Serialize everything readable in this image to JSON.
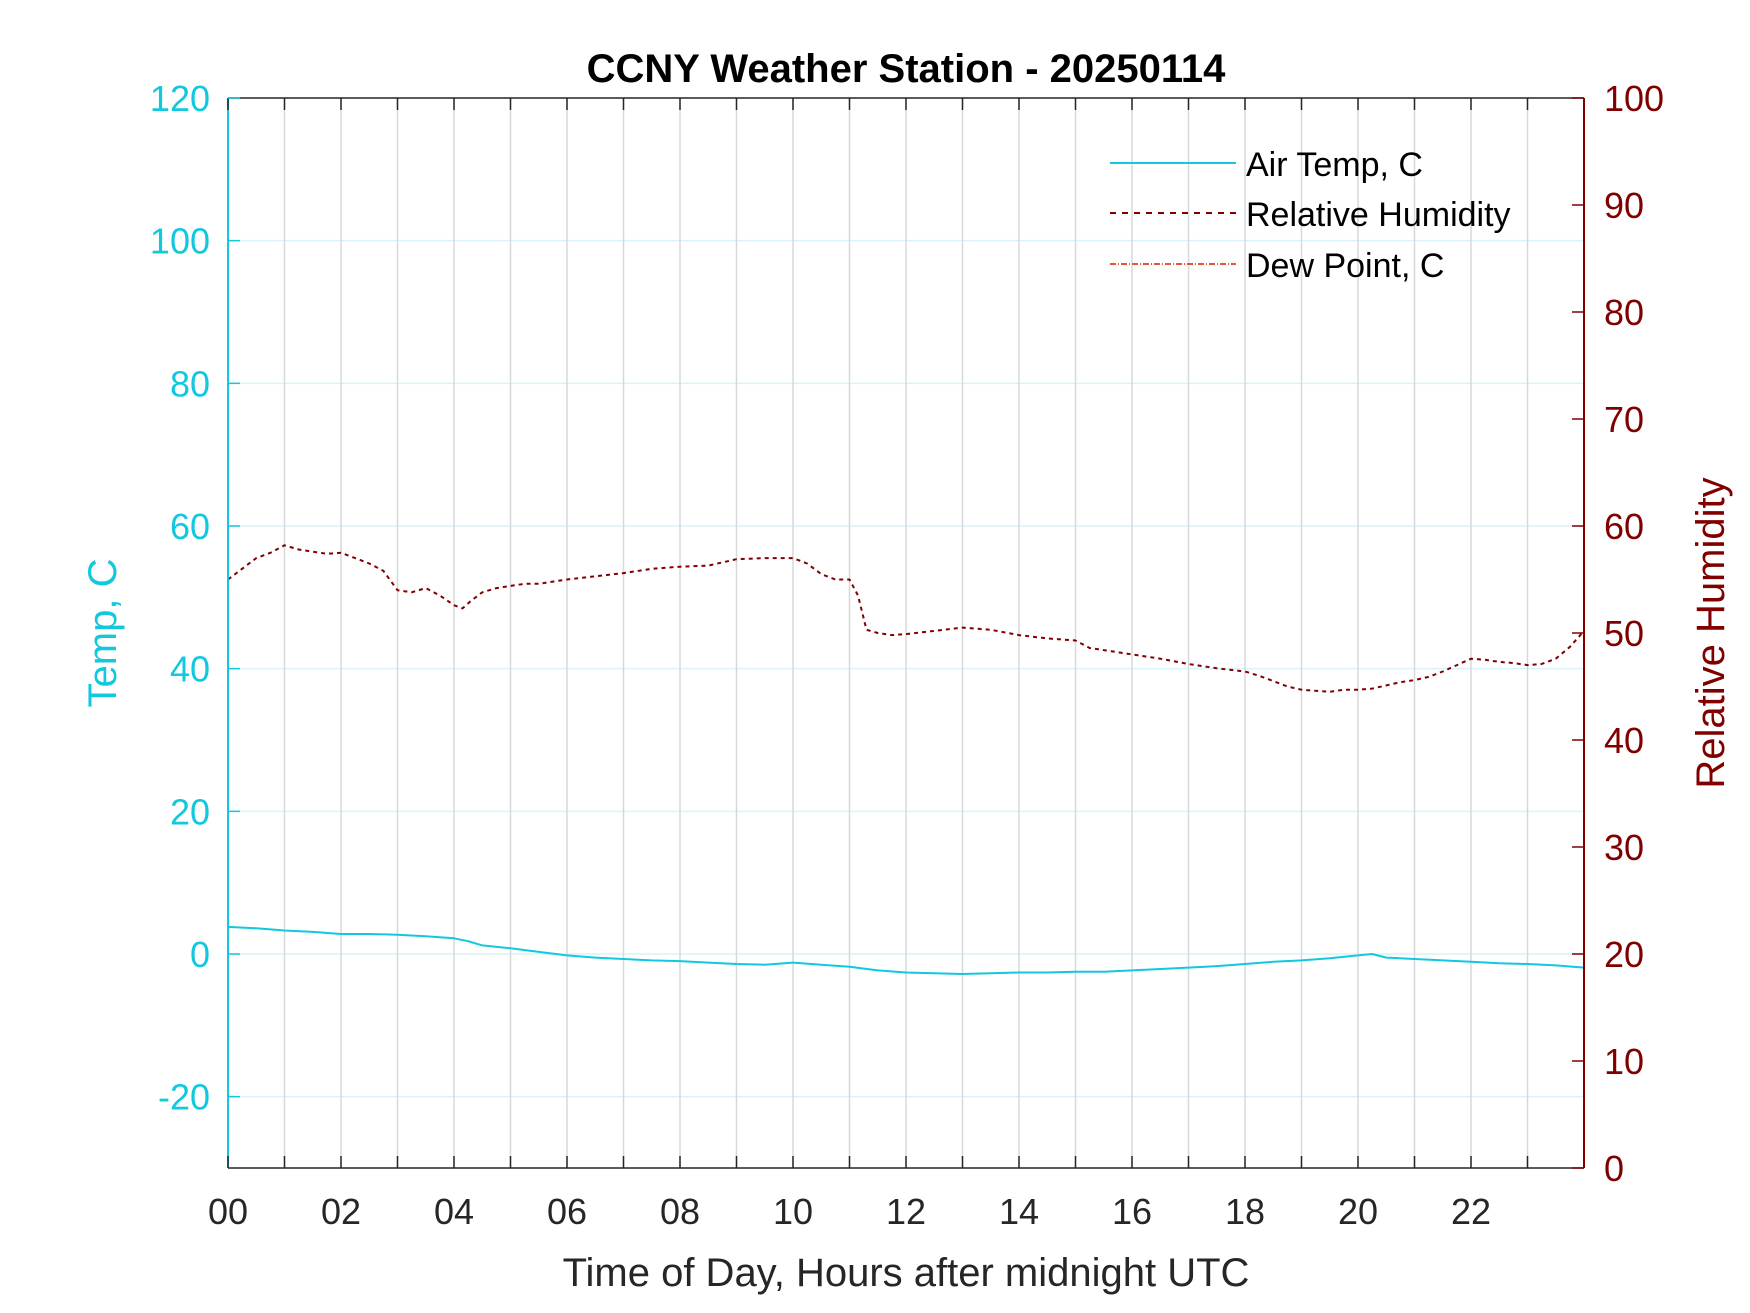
{
  "chart_data": {
    "type": "line",
    "title": "CCNY Weather Station - 20250114",
    "xlabel": "Time of Day, Hours after midnight UTC",
    "ylabel_left": "Temp, C",
    "ylabel_right": "Relative Humidity",
    "xlim": [
      0,
      24
    ],
    "ylim_left": [
      -30,
      120
    ],
    "ylim_right": [
      0,
      100
    ],
    "x_ticks": [
      0,
      1,
      2,
      3,
      4,
      5,
      6,
      7,
      8,
      9,
      10,
      11,
      12,
      13,
      14,
      15,
      16,
      17,
      18,
      19,
      20,
      21,
      22,
      23
    ],
    "x_tick_labels": [
      "00",
      "02",
      "04",
      "06",
      "08",
      "10",
      "12",
      "14",
      "16",
      "18",
      "20",
      "22"
    ],
    "x_tick_label_values": [
      0,
      2,
      4,
      6,
      8,
      10,
      12,
      14,
      16,
      18,
      20,
      22
    ],
    "y_ticks_left": [
      -20,
      0,
      20,
      40,
      60,
      80,
      100,
      120
    ],
    "y_tick_labels_left": [
      "-20",
      "0",
      "20",
      "40",
      "60",
      "80",
      "100",
      "120"
    ],
    "y_ticks_right": [
      0,
      10,
      20,
      30,
      40,
      50,
      60,
      70,
      80,
      90,
      100
    ],
    "y_tick_labels_right": [
      "0",
      "10",
      "20",
      "30",
      "40",
      "50",
      "60",
      "70",
      "80",
      "90",
      "100"
    ],
    "grid": true,
    "legend_position": "top-right",
    "series": [
      {
        "name": "Air Temp, C",
        "axis": "left",
        "color": "#12c8df",
        "style": "solid",
        "x": [
          0,
          0.5,
          1,
          1.5,
          2,
          2.5,
          3,
          3.5,
          4,
          4.25,
          4.5,
          5,
          5.5,
          6,
          6.5,
          7,
          7.5,
          8,
          8.5,
          9,
          9.5,
          10,
          10.5,
          11,
          11.5,
          12,
          12.5,
          13,
          13.5,
          14,
          14.5,
          15,
          15.5,
          16,
          16.5,
          17,
          17.5,
          18,
          18.5,
          19,
          19.5,
          20,
          20.25,
          20.5,
          21,
          21.5,
          22,
          22.5,
          23,
          23.5,
          24
        ],
        "y": [
          3.8,
          3.6,
          3.3,
          3.1,
          2.8,
          2.8,
          2.7,
          2.5,
          2.2,
          1.8,
          1.2,
          0.8,
          0.3,
          -0.2,
          -0.5,
          -0.7,
          -0.9,
          -1.0,
          -1.2,
          -1.4,
          -1.5,
          -1.2,
          -1.5,
          -1.8,
          -2.3,
          -2.6,
          -2.7,
          -2.8,
          -2.7,
          -2.6,
          -2.6,
          -2.5,
          -2.5,
          -2.3,
          -2.1,
          -1.9,
          -1.7,
          -1.4,
          -1.1,
          -0.9,
          -0.6,
          -0.2,
          0.0,
          -0.5,
          -0.7,
          -0.9,
          -1.1,
          -1.3,
          -1.4,
          -1.6,
          -1.9
        ]
      },
      {
        "name": "Relative Humidity",
        "axis": "right",
        "color": "#800000",
        "style": "dashed",
        "x": [
          0,
          0.25,
          0.5,
          0.75,
          1,
          1.25,
          1.5,
          1.75,
          2,
          2.25,
          2.5,
          2.75,
          3,
          3.25,
          3.5,
          3.75,
          4,
          4.15,
          4.3,
          4.5,
          4.75,
          5,
          5.25,
          5.5,
          5.75,
          6,
          6.5,
          7,
          7.5,
          8,
          8.5,
          9,
          9.5,
          10,
          10.25,
          10.5,
          10.75,
          11,
          11.15,
          11.3,
          11.5,
          11.75,
          12,
          12.5,
          13,
          13.5,
          14,
          14.5,
          15,
          15.25,
          15.5,
          16,
          16.5,
          17,
          17.5,
          18,
          18.25,
          18.5,
          18.75,
          19,
          19.25,
          19.5,
          19.75,
          20,
          20.25,
          20.5,
          20.75,
          21,
          21.25,
          21.5,
          21.75,
          22,
          22.25,
          22.5,
          22.75,
          23,
          23.25,
          23.5,
          23.75,
          24
        ],
        "y": [
          55.0,
          56.0,
          57.0,
          57.5,
          58.2,
          57.8,
          57.6,
          57.4,
          57.5,
          57.0,
          56.5,
          55.8,
          54.0,
          53.8,
          54.2,
          53.5,
          52.6,
          52.3,
          53.0,
          53.8,
          54.2,
          54.4,
          54.6,
          54.6,
          54.8,
          55.0,
          55.3,
          55.6,
          56.0,
          56.2,
          56.3,
          56.9,
          57.0,
          57.0,
          56.5,
          55.5,
          55.0,
          55.0,
          53.5,
          50.3,
          50.0,
          49.8,
          49.9,
          50.2,
          50.5,
          50.3,
          49.8,
          49.5,
          49.3,
          48.6,
          48.4,
          48.0,
          47.6,
          47.1,
          46.7,
          46.4,
          46.0,
          45.5,
          45.0,
          44.7,
          44.6,
          44.5,
          44.7,
          44.7,
          44.8,
          45.1,
          45.4,
          45.6,
          45.9,
          46.4,
          47.0,
          47.6,
          47.5,
          47.3,
          47.2,
          47.0,
          47.1,
          47.6,
          48.7,
          50.2
        ]
      },
      {
        "name": "Dew Point, C",
        "axis": "left",
        "color": "#e5553d",
        "style": "dashdot",
        "x": [],
        "y": []
      }
    ]
  }
}
